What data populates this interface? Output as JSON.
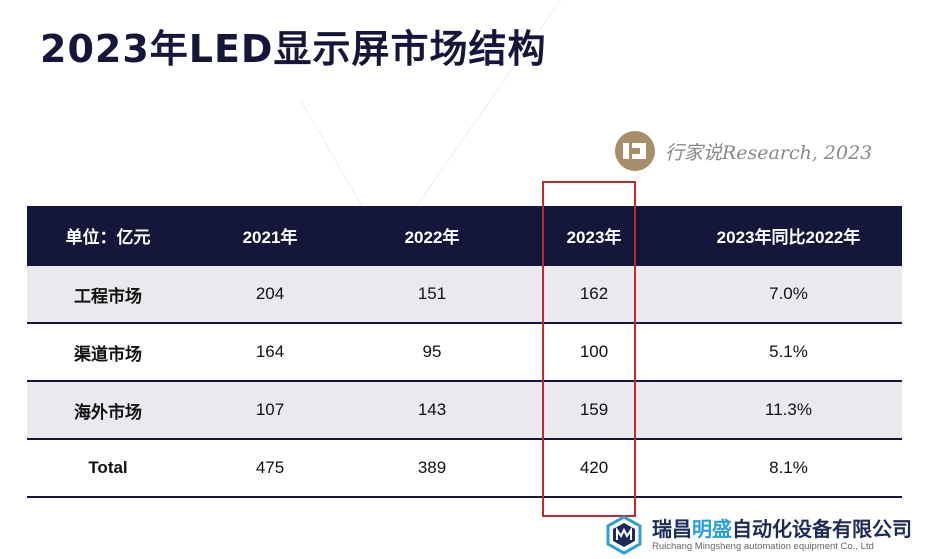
{
  "title": "2023年LED显示屏市场结构",
  "source": {
    "logo_icon": "hangjiashuo-logo-icon",
    "text": "行家说Research, 2023"
  },
  "table": {
    "headers": [
      "单位：亿元",
      "2021年",
      "2022年",
      "2023年",
      "2023年同比2022年"
    ],
    "rows": [
      {
        "label": "工程市场",
        "v2021": "204",
        "v2022": "151",
        "v2023": "162",
        "yoy": "7.0%"
      },
      {
        "label": "渠道市场",
        "v2021": "164",
        "v2022": "95",
        "v2023": "100",
        "yoy": "5.1%"
      },
      {
        "label": "海外市场",
        "v2021": "107",
        "v2022": "143",
        "v2023": "159",
        "yoy": "11.3%"
      },
      {
        "label": "Total",
        "v2021": "475",
        "v2022": "389",
        "v2023": "420",
        "yoy": "8.1%"
      }
    ]
  },
  "highlight": {
    "column": "2023年",
    "color": "#c0282d"
  },
  "watermark": {
    "logo_icon": "hexagon-ms-logo-icon",
    "name_part1": "瑞昌",
    "name_highlight": "明盛",
    "name_part2": "自动化设备有限公司",
    "english": "Ruichang Mingsheng automation equipment Co., Ltd"
  },
  "colors": {
    "header_bg": "#14163a",
    "stripe_bg": "#e9e9ee",
    "accent": "#2a9ed8",
    "source_logo": "#a88d6b"
  }
}
